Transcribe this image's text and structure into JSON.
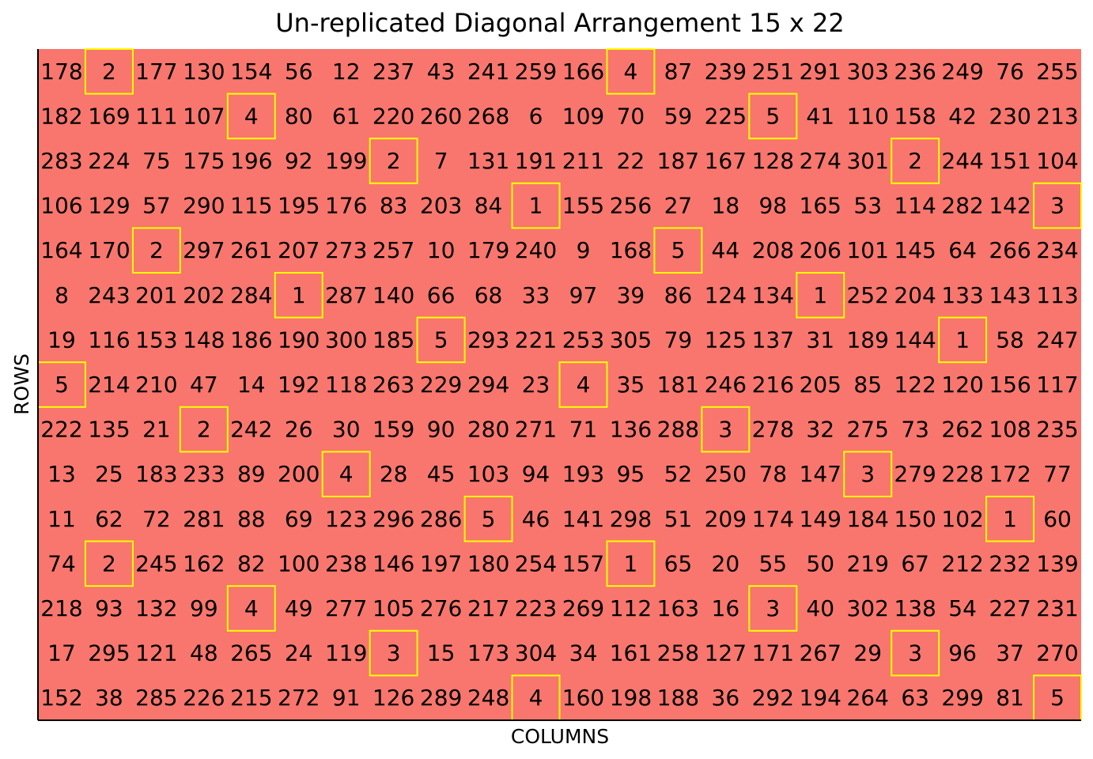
{
  "chart_data": {
    "type": "heatmap",
    "title": "Un-replicated Diagonal Arrangement 15 x 22",
    "xlabel": "COLUMNS",
    "ylabel": "ROWS",
    "n_rows": 15,
    "n_cols": 22,
    "background_color": "#F8766D",
    "check_border_color": "#FFFF00",
    "check_colors": {
      "1": "#E31A1C",
      "2": "#FF7F00",
      "3": "#4D9221",
      "4": "#1F78B4",
      "5": "#0000FF"
    },
    "rows": [
      [
        "178",
        "2",
        "177",
        "130",
        "154",
        "56",
        "12",
        "237",
        "43",
        "241",
        "259",
        "166",
        "4",
        "87",
        "239",
        "251",
        "291",
        "303",
        "236",
        "249",
        "76",
        "255"
      ],
      [
        "182",
        "169",
        "111",
        "107",
        "4",
        "80",
        "61",
        "220",
        "260",
        "268",
        "6",
        "109",
        "70",
        "59",
        "225",
        "5",
        "41",
        "110",
        "158",
        "42",
        "230",
        "213"
      ],
      [
        "283",
        "224",
        "75",
        "175",
        "196",
        "92",
        "199",
        "2",
        "7",
        "131",
        "191",
        "211",
        "22",
        "187",
        "167",
        "128",
        "274",
        "301",
        "2",
        "244",
        "151",
        "104"
      ],
      [
        "106",
        "129",
        "57",
        "290",
        "115",
        "195",
        "176",
        "83",
        "203",
        "84",
        "1",
        "155",
        "256",
        "27",
        "18",
        "98",
        "165",
        "53",
        "114",
        "282",
        "142",
        "3"
      ],
      [
        "164",
        "170",
        "2",
        "297",
        "261",
        "207",
        "273",
        "257",
        "10",
        "179",
        "240",
        "9",
        "168",
        "5",
        "44",
        "208",
        "206",
        "101",
        "145",
        "64",
        "266",
        "234"
      ],
      [
        "8",
        "243",
        "201",
        "202",
        "284",
        "1",
        "287",
        "140",
        "66",
        "68",
        "33",
        "97",
        "39",
        "86",
        "124",
        "134",
        "1",
        "252",
        "204",
        "133",
        "143",
        "113"
      ],
      [
        "19",
        "116",
        "153",
        "148",
        "186",
        "190",
        "300",
        "185",
        "5",
        "293",
        "221",
        "253",
        "305",
        "79",
        "125",
        "137",
        "31",
        "189",
        "144",
        "1",
        "58",
        "247"
      ],
      [
        "5",
        "214",
        "210",
        "47",
        "14",
        "192",
        "118",
        "263",
        "229",
        "294",
        "23",
        "4",
        "35",
        "181",
        "246",
        "216",
        "205",
        "85",
        "122",
        "120",
        "156",
        "117"
      ],
      [
        "222",
        "135",
        "21",
        "2",
        "242",
        "26",
        "30",
        "159",
        "90",
        "280",
        "271",
        "71",
        "136",
        "288",
        "3",
        "278",
        "32",
        "275",
        "73",
        "262",
        "108",
        "235"
      ],
      [
        "13",
        "25",
        "183",
        "233",
        "89",
        "200",
        "4",
        "28",
        "45",
        "103",
        "94",
        "193",
        "95",
        "52",
        "250",
        "78",
        "147",
        "3",
        "279",
        "228",
        "172",
        "77"
      ],
      [
        "11",
        "62",
        "72",
        "281",
        "88",
        "69",
        "123",
        "296",
        "286",
        "5",
        "46",
        "141",
        "298",
        "51",
        "209",
        "174",
        "149",
        "184",
        "150",
        "102",
        "1",
        "60"
      ],
      [
        "74",
        "2",
        "245",
        "162",
        "82",
        "100",
        "238",
        "146",
        "197",
        "180",
        "254",
        "157",
        "1",
        "65",
        "20",
        "55",
        "50",
        "219",
        "67",
        "212",
        "232",
        "139"
      ],
      [
        "218",
        "93",
        "132",
        "99",
        "4",
        "49",
        "277",
        "105",
        "276",
        "217",
        "223",
        "269",
        "112",
        "163",
        "16",
        "3",
        "40",
        "302",
        "138",
        "54",
        "227",
        "231"
      ],
      [
        "17",
        "295",
        "121",
        "48",
        "265",
        "24",
        "119",
        "3",
        "15",
        "173",
        "304",
        "34",
        "161",
        "258",
        "127",
        "171",
        "267",
        "29",
        "3",
        "96",
        "37",
        "270"
      ],
      [
        "152",
        "38",
        "285",
        "226",
        "215",
        "272",
        "91",
        "126",
        "289",
        "248",
        "4",
        "160",
        "198",
        "188",
        "36",
        "292",
        "194",
        "264",
        "63",
        "299",
        "81",
        "5"
      ]
    ],
    "checks": [
      {
        "row": 1,
        "col": 2
      },
      {
        "row": 1,
        "col": 13
      },
      {
        "row": 2,
        "col": 5
      },
      {
        "row": 2,
        "col": 16
      },
      {
        "row": 3,
        "col": 8
      },
      {
        "row": 3,
        "col": 19
      },
      {
        "row": 4,
        "col": 11
      },
      {
        "row": 4,
        "col": 22
      },
      {
        "row": 5,
        "col": 3
      },
      {
        "row": 5,
        "col": 14
      },
      {
        "row": 6,
        "col": 6
      },
      {
        "row": 6,
        "col": 17
      },
      {
        "row": 7,
        "col": 9
      },
      {
        "row": 7,
        "col": 20
      },
      {
        "row": 8,
        "col": 1
      },
      {
        "row": 8,
        "col": 12
      },
      {
        "row": 9,
        "col": 4
      },
      {
        "row": 9,
        "col": 15
      },
      {
        "row": 10,
        "col": 7
      },
      {
        "row": 10,
        "col": 18
      },
      {
        "row": 11,
        "col": 10
      },
      {
        "row": 11,
        "col": 21
      },
      {
        "row": 12,
        "col": 2
      },
      {
        "row": 12,
        "col": 13
      },
      {
        "row": 13,
        "col": 5
      },
      {
        "row": 13,
        "col": 16
      },
      {
        "row": 14,
        "col": 8
      },
      {
        "row": 14,
        "col": 19
      },
      {
        "row": 15,
        "col": 11
      },
      {
        "row": 15,
        "col": 22
      }
    ]
  }
}
